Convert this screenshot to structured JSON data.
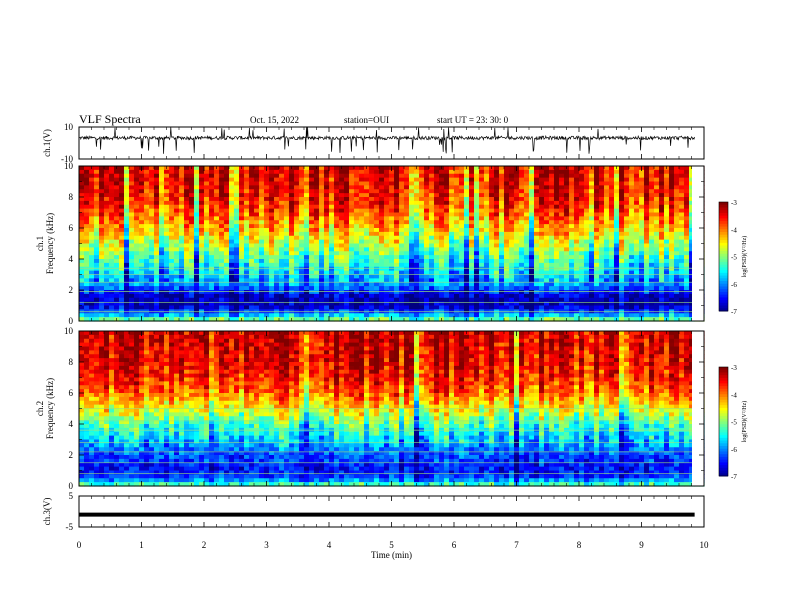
{
  "header": {
    "title": "VLF Spectra",
    "date": "Oct. 15, 2022",
    "station": "station=OUI",
    "start": "start  UT =   23: 30: 0"
  },
  "chart_data": [
    {
      "type": "line",
      "panel": "ch1-waveform",
      "ylabel": "ch.1(V)",
      "ylim": [
        -10,
        10
      ],
      "ytick_labels": [
        "10",
        "-10"
      ],
      "x_range_min": [
        0,
        9.85
      ],
      "baseline_v": 3.2,
      "noise": "spiky around baseline, spikes reaching ±10 V"
    },
    {
      "type": "heatmap",
      "panel": "ch1-spectrogram",
      "ylabel": "ch.1\nFrequency  (kHz)",
      "ylim": [
        0,
        10
      ],
      "ytick_labels": [
        "0",
        "2",
        "4",
        "6",
        "8",
        "10"
      ],
      "colorbar": {
        "label": "log(PSD)(V²/Hz)",
        "range": [
          -7,
          -3
        ],
        "tick_labels": [
          "-3",
          "-4",
          "-5",
          "-6",
          "-7"
        ]
      },
      "profile_khz_to_logpsd": [
        [
          0,
          -4.8
        ],
        [
          0.5,
          -6.0
        ],
        [
          1.0,
          -6.8
        ],
        [
          1.6,
          -6.7
        ],
        [
          2.2,
          -6.0
        ],
        [
          3.0,
          -5.6
        ],
        [
          4.0,
          -5.2
        ],
        [
          5.0,
          -4.7
        ],
        [
          6.0,
          -4.2
        ],
        [
          7.0,
          -3.8
        ],
        [
          8.0,
          -3.5
        ],
        [
          10.0,
          -3.3
        ]
      ],
      "lines_khz": [
        0.6,
        1.2,
        1.9,
        2.5,
        3.0,
        3.4
      ]
    },
    {
      "type": "heatmap",
      "panel": "ch2-spectrogram",
      "ylabel": "ch.2\nFrequency  (kHz)",
      "ylim": [
        0,
        10
      ],
      "ytick_labels": [
        "0",
        "2",
        "4",
        "6",
        "8",
        "10"
      ],
      "colorbar": {
        "label": "log(PSD)(V²/Hz)",
        "range": [
          -7,
          -3
        ],
        "tick_labels": [
          "-3",
          "-4",
          "-5",
          "-6",
          "-7"
        ]
      },
      "profile_khz_to_logpsd": [
        [
          0,
          -5.0
        ],
        [
          0.5,
          -6.2
        ],
        [
          1.0,
          -6.5
        ],
        [
          2.0,
          -6.2
        ],
        [
          3.0,
          -5.7
        ],
        [
          4.0,
          -5.2
        ],
        [
          5.0,
          -4.5
        ],
        [
          6.0,
          -3.9
        ],
        [
          7.0,
          -3.6
        ],
        [
          8.0,
          -3.4
        ],
        [
          10.0,
          -3.3
        ]
      ],
      "lines_khz": [
        0.8,
        1.5,
        2.2,
        2.8,
        3.6,
        4.2,
        5.0
      ]
    },
    {
      "type": "line",
      "panel": "ch3-waveform",
      "ylabel": "ch.3(V)",
      "ylim": [
        -5,
        5
      ],
      "ytick_labels": [
        "5",
        "-5"
      ],
      "x_range_min": [
        0,
        9.85
      ],
      "constant_v": -1.0
    }
  ],
  "xaxis": {
    "xlabel": "Time  (min)",
    "xlim": [
      0,
      10
    ],
    "tick_labels": [
      "0",
      "1",
      "2",
      "3",
      "4",
      "5",
      "6",
      "7",
      "8",
      "9",
      "10"
    ]
  }
}
